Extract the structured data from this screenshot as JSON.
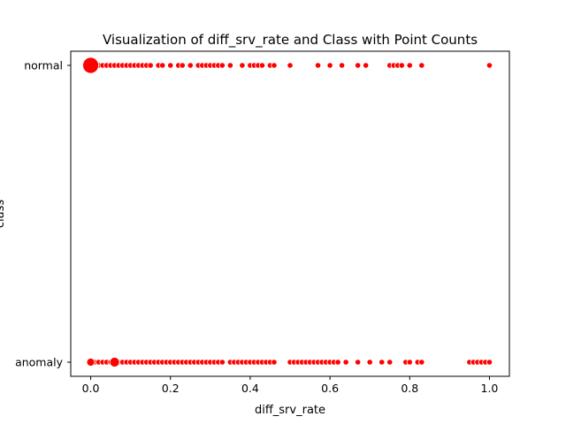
{
  "chart_data": {
    "type": "scatter",
    "title": "Visualization of diff_srv_rate and Class with Point Counts",
    "xlabel": "diff_srv_rate",
    "ylabel": "class",
    "xlim": [
      -0.05,
      1.05
    ],
    "x_ticks": [
      "0.0",
      "0.2",
      "0.4",
      "0.6",
      "0.8",
      "1.0"
    ],
    "categories": [
      "normal",
      "anomaly"
    ],
    "marker_color": "#ff0000",
    "grid": false,
    "legend": "none",
    "series": [
      {
        "category": "normal",
        "points": [
          {
            "x": 0.0,
            "count": 400
          },
          {
            "x": 0.01,
            "count": 10
          },
          {
            "x": 0.02,
            "count": 10
          },
          {
            "x": 0.03,
            "count": 10
          },
          {
            "x": 0.04,
            "count": 10
          },
          {
            "x": 0.05,
            "count": 10
          },
          {
            "x": 0.06,
            "count": 10
          },
          {
            "x": 0.07,
            "count": 10
          },
          {
            "x": 0.08,
            "count": 10
          },
          {
            "x": 0.09,
            "count": 10
          },
          {
            "x": 0.1,
            "count": 10
          },
          {
            "x": 0.11,
            "count": 10
          },
          {
            "x": 0.12,
            "count": 10
          },
          {
            "x": 0.13,
            "count": 10
          },
          {
            "x": 0.14,
            "count": 10
          },
          {
            "x": 0.15,
            "count": 10
          },
          {
            "x": 0.17,
            "count": 10
          },
          {
            "x": 0.18,
            "count": 10
          },
          {
            "x": 0.2,
            "count": 10
          },
          {
            "x": 0.22,
            "count": 10
          },
          {
            "x": 0.23,
            "count": 10
          },
          {
            "x": 0.25,
            "count": 10
          },
          {
            "x": 0.27,
            "count": 10
          },
          {
            "x": 0.28,
            "count": 10
          },
          {
            "x": 0.29,
            "count": 10
          },
          {
            "x": 0.3,
            "count": 10
          },
          {
            "x": 0.31,
            "count": 10
          },
          {
            "x": 0.32,
            "count": 10
          },
          {
            "x": 0.33,
            "count": 10
          },
          {
            "x": 0.35,
            "count": 10
          },
          {
            "x": 0.38,
            "count": 10
          },
          {
            "x": 0.4,
            "count": 10
          },
          {
            "x": 0.41,
            "count": 10
          },
          {
            "x": 0.42,
            "count": 10
          },
          {
            "x": 0.43,
            "count": 10
          },
          {
            "x": 0.45,
            "count": 10
          },
          {
            "x": 0.46,
            "count": 10
          },
          {
            "x": 0.5,
            "count": 10
          },
          {
            "x": 0.57,
            "count": 10
          },
          {
            "x": 0.6,
            "count": 10
          },
          {
            "x": 0.63,
            "count": 10
          },
          {
            "x": 0.67,
            "count": 10
          },
          {
            "x": 0.69,
            "count": 10
          },
          {
            "x": 0.75,
            "count": 10
          },
          {
            "x": 0.76,
            "count": 10
          },
          {
            "x": 0.77,
            "count": 10
          },
          {
            "x": 0.78,
            "count": 10
          },
          {
            "x": 0.8,
            "count": 10
          },
          {
            "x": 0.83,
            "count": 10
          },
          {
            "x": 1.0,
            "count": 10
          }
        ]
      },
      {
        "category": "anomaly",
        "points": [
          {
            "x": 0.0,
            "count": 100
          },
          {
            "x": 0.01,
            "count": 10
          },
          {
            "x": 0.02,
            "count": 10
          },
          {
            "x": 0.03,
            "count": 10
          },
          {
            "x": 0.04,
            "count": 10
          },
          {
            "x": 0.05,
            "count": 10
          },
          {
            "x": 0.06,
            "count": 150
          },
          {
            "x": 0.07,
            "count": 10
          },
          {
            "x": 0.08,
            "count": 10
          },
          {
            "x": 0.09,
            "count": 10
          },
          {
            "x": 0.1,
            "count": 10
          },
          {
            "x": 0.11,
            "count": 10
          },
          {
            "x": 0.12,
            "count": 10
          },
          {
            "x": 0.13,
            "count": 10
          },
          {
            "x": 0.14,
            "count": 10
          },
          {
            "x": 0.15,
            "count": 10
          },
          {
            "x": 0.16,
            "count": 10
          },
          {
            "x": 0.17,
            "count": 10
          },
          {
            "x": 0.18,
            "count": 10
          },
          {
            "x": 0.19,
            "count": 10
          },
          {
            "x": 0.2,
            "count": 10
          },
          {
            "x": 0.21,
            "count": 10
          },
          {
            "x": 0.22,
            "count": 10
          },
          {
            "x": 0.23,
            "count": 10
          },
          {
            "x": 0.24,
            "count": 10
          },
          {
            "x": 0.25,
            "count": 10
          },
          {
            "x": 0.26,
            "count": 10
          },
          {
            "x": 0.27,
            "count": 10
          },
          {
            "x": 0.28,
            "count": 10
          },
          {
            "x": 0.29,
            "count": 10
          },
          {
            "x": 0.3,
            "count": 10
          },
          {
            "x": 0.31,
            "count": 10
          },
          {
            "x": 0.32,
            "count": 10
          },
          {
            "x": 0.33,
            "count": 10
          },
          {
            "x": 0.35,
            "count": 10
          },
          {
            "x": 0.36,
            "count": 10
          },
          {
            "x": 0.37,
            "count": 10
          },
          {
            "x": 0.38,
            "count": 10
          },
          {
            "x": 0.39,
            "count": 10
          },
          {
            "x": 0.4,
            "count": 10
          },
          {
            "x": 0.41,
            "count": 10
          },
          {
            "x": 0.42,
            "count": 10
          },
          {
            "x": 0.43,
            "count": 10
          },
          {
            "x": 0.44,
            "count": 10
          },
          {
            "x": 0.45,
            "count": 10
          },
          {
            "x": 0.46,
            "count": 10
          },
          {
            "x": 0.5,
            "count": 10
          },
          {
            "x": 0.51,
            "count": 10
          },
          {
            "x": 0.52,
            "count": 10
          },
          {
            "x": 0.53,
            "count": 10
          },
          {
            "x": 0.54,
            "count": 10
          },
          {
            "x": 0.55,
            "count": 10
          },
          {
            "x": 0.56,
            "count": 10
          },
          {
            "x": 0.57,
            "count": 10
          },
          {
            "x": 0.58,
            "count": 10
          },
          {
            "x": 0.59,
            "count": 10
          },
          {
            "x": 0.6,
            "count": 10
          },
          {
            "x": 0.61,
            "count": 10
          },
          {
            "x": 0.62,
            "count": 10
          },
          {
            "x": 0.64,
            "count": 10
          },
          {
            "x": 0.67,
            "count": 10
          },
          {
            "x": 0.7,
            "count": 10
          },
          {
            "x": 0.73,
            "count": 10
          },
          {
            "x": 0.75,
            "count": 10
          },
          {
            "x": 0.79,
            "count": 10
          },
          {
            "x": 0.8,
            "count": 10
          },
          {
            "x": 0.82,
            "count": 10
          },
          {
            "x": 0.83,
            "count": 10
          },
          {
            "x": 0.95,
            "count": 10
          },
          {
            "x": 0.96,
            "count": 10
          },
          {
            "x": 0.97,
            "count": 10
          },
          {
            "x": 0.98,
            "count": 10
          },
          {
            "x": 0.99,
            "count": 10
          },
          {
            "x": 1.0,
            "count": 10
          }
        ]
      }
    ]
  }
}
